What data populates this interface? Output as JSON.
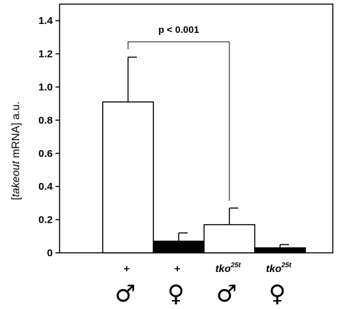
{
  "chart_data": {
    "type": "bar",
    "ylabel": {
      "prefix": "[",
      "italic": "takeout",
      "suffix": " mRNA] a.u."
    },
    "ylim": [
      0,
      1.5
    ],
    "yticks": [
      "0",
      "0.2",
      "0.4",
      "0.6",
      "0.8",
      "1.0",
      "1.2",
      "1.4"
    ],
    "ytick_values": [
      0,
      0.2,
      0.4,
      0.6,
      0.8,
      1.0,
      1.2,
      1.4
    ],
    "categories": [
      {
        "genotype": "+",
        "genotype_sup": "",
        "sex": "♂",
        "fill": "#ffffff"
      },
      {
        "genotype": "+",
        "genotype_sup": "",
        "sex": "♀",
        "fill": "#000000"
      },
      {
        "genotype": "tko",
        "genotype_sup": "25t",
        "sex": "♂",
        "fill": "#ffffff"
      },
      {
        "genotype": "tko",
        "genotype_sup": "25t",
        "sex": "♀",
        "fill": "#000000"
      }
    ],
    "values": [
      0.91,
      0.07,
      0.17,
      0.03
    ],
    "errors": [
      0.27,
      0.05,
      0.1,
      0.02
    ],
    "annotation": {
      "text": "p < 0.001",
      "between": [
        0,
        2
      ]
    }
  }
}
